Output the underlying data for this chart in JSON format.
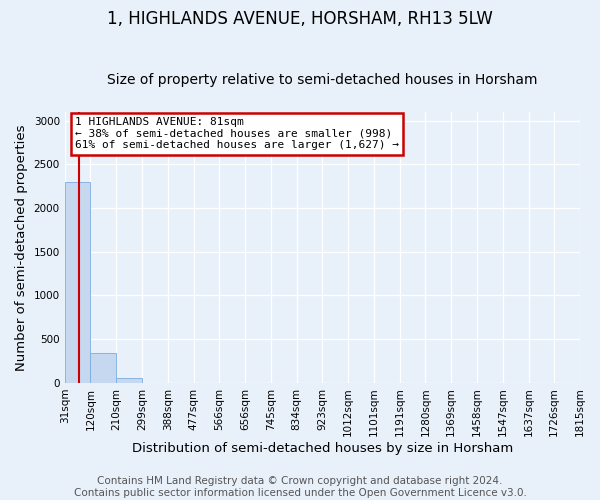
{
  "title": "1, HIGHLANDS AVENUE, HORSHAM, RH13 5LW",
  "subtitle": "Size of property relative to semi-detached houses in Horsham",
  "xlabel": "Distribution of semi-detached houses by size in Horsham",
  "ylabel": "Number of semi-detached properties",
  "footer_line1": "Contains HM Land Registry data © Crown copyright and database right 2024.",
  "footer_line2": "Contains public sector information licensed under the Open Government Licence v3.0.",
  "bin_labels": [
    "31sqm",
    "120sqm",
    "210sqm",
    "299sqm",
    "388sqm",
    "477sqm",
    "566sqm",
    "656sqm",
    "745sqm",
    "834sqm",
    "923sqm",
    "1012sqm",
    "1101sqm",
    "1191sqm",
    "1280sqm",
    "1369sqm",
    "1458sqm",
    "1547sqm",
    "1637sqm",
    "1726sqm",
    "1815sqm"
  ],
  "bin_edges": [
    31,
    120,
    210,
    299,
    388,
    477,
    566,
    656,
    745,
    834,
    923,
    1012,
    1101,
    1191,
    1280,
    1369,
    1458,
    1547,
    1637,
    1726,
    1815
  ],
  "bar_heights": [
    2300,
    340,
    50,
    0,
    0,
    0,
    0,
    0,
    0,
    0,
    0,
    0,
    0,
    0,
    0,
    0,
    0,
    0,
    0,
    0
  ],
  "bar_color": "#c5d8f0",
  "bar_edge_color": "#7aade0",
  "property_sqm": 81,
  "property_line_color": "#cc0000",
  "annotation_text_line1": "1 HIGHLANDS AVENUE: 81sqm",
  "annotation_text_line2": "← 38% of semi-detached houses are smaller (998)",
  "annotation_text_line3": "61% of semi-detached houses are larger (1,627) →",
  "annotation_box_color": "#cc0000",
  "annotation_fill": "#ffffff",
  "ylim": [
    0,
    3100
  ],
  "yticks": [
    0,
    500,
    1000,
    1500,
    2000,
    2500,
    3000
  ],
  "background_color": "#e8f0fa",
  "plot_background": "#e8f0fa",
  "grid_color": "#ffffff",
  "title_fontsize": 12,
  "subtitle_fontsize": 10,
  "axis_label_fontsize": 9.5,
  "tick_fontsize": 7.5,
  "footer_fontsize": 7.5
}
